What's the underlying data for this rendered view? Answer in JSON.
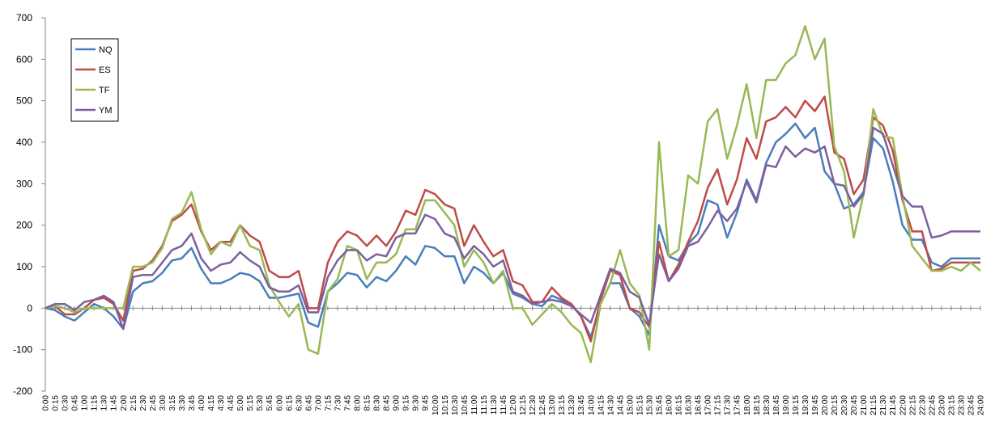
{
  "chart_data": {
    "type": "line",
    "title": "",
    "xlabel": "",
    "ylabel": "",
    "ylim": [
      -200,
      700
    ],
    "yticks": [
      "700",
      "600",
      "500",
      "400",
      "300",
      "200",
      "100",
      "0",
      "-100",
      "-200"
    ],
    "grid": false,
    "legend": "top-left",
    "x": [
      "0:00",
      "0:15",
      "0:30",
      "0:45",
      "1:00",
      "1:15",
      "1:30",
      "1:45",
      "2:00",
      "2:15",
      "2:30",
      "2:45",
      "3:00",
      "3:15",
      "3:30",
      "3:45",
      "4:00",
      "4:15",
      "4:30",
      "4:45",
      "5:00",
      "5:15",
      "5:30",
      "5:45",
      "6:00",
      "6:15",
      "6:30",
      "6:45",
      "7:00",
      "7:15",
      "7:30",
      "7:45",
      "8:00",
      "8:15",
      "8:30",
      "8:45",
      "9:00",
      "9:15",
      "9:30",
      "9:45",
      "10:00",
      "10:15",
      "10:30",
      "10:45",
      "11:00",
      "11:15",
      "11:30",
      "11:45",
      "12:00",
      "12:15",
      "12:30",
      "12:45",
      "13:00",
      "13:15",
      "13:30",
      "13:45",
      "14:00",
      "14:15",
      "14:30",
      "14:45",
      "15:00",
      "15:15",
      "15:30",
      "15:45",
      "16:00",
      "16:15",
      "16:30",
      "16:45",
      "17:00",
      "17:15",
      "17:30",
      "17:45",
      "18:00",
      "18:15",
      "18:30",
      "18:45",
      "19:00",
      "19:15",
      "19:30",
      "19:45",
      "20:00",
      "20:15",
      "20:30",
      "20:45",
      "21:00",
      "21:15",
      "21:30",
      "21:45",
      "22:00",
      "22:15",
      "22:30",
      "22:45",
      "23:00",
      "23:15",
      "23:30",
      "23:45",
      "24:00"
    ],
    "series": [
      {
        "name": "NQ",
        "color": "#4a7ebb",
        "values": [
          0,
          -5,
          -20,
          -30,
          -10,
          10,
          0,
          -20,
          -50,
          40,
          60,
          65,
          85,
          115,
          120,
          145,
          95,
          60,
          60,
          70,
          85,
          80,
          65,
          25,
          25,
          30,
          35,
          -35,
          -45,
          40,
          60,
          85,
          80,
          50,
          75,
          65,
          90,
          125,
          105,
          150,
          145,
          125,
          125,
          60,
          100,
          85,
          60,
          85,
          35,
          25,
          10,
          5,
          30,
          20,
          10,
          -20,
          -70,
          10,
          60,
          60,
          0,
          -20,
          -65,
          200,
          125,
          115,
          155,
          180,
          260,
          250,
          170,
          230,
          310,
          260,
          350,
          400,
          420,
          445,
          410,
          435,
          330,
          300,
          240,
          250,
          280,
          410,
          385,
          305,
          200,
          165,
          165,
          110,
          100,
          120,
          120,
          120,
          120
        ]
      },
      {
        "name": "ES",
        "color": "#be4b48",
        "values": [
          0,
          5,
          -15,
          -15,
          0,
          20,
          25,
          10,
          -30,
          90,
          95,
          115,
          150,
          210,
          225,
          250,
          185,
          140,
          160,
          160,
          200,
          175,
          160,
          90,
          75,
          75,
          90,
          0,
          0,
          110,
          160,
          185,
          175,
          150,
          175,
          150,
          185,
          235,
          225,
          285,
          275,
          250,
          240,
          150,
          200,
          160,
          125,
          140,
          65,
          55,
          15,
          15,
          50,
          25,
          10,
          -20,
          -80,
          20,
          90,
          80,
          0,
          -10,
          -45,
          160,
          65,
          105,
          160,
          210,
          290,
          335,
          250,
          310,
          410,
          360,
          450,
          460,
          485,
          460,
          500,
          475,
          510,
          375,
          360,
          275,
          310,
          460,
          440,
          380,
          260,
          185,
          185,
          90,
          95,
          110,
          110,
          110,
          110
        ]
      },
      {
        "name": "TF",
        "color": "#98b954",
        "values": [
          0,
          5,
          0,
          -10,
          0,
          0,
          0,
          0,
          0,
          100,
          100,
          110,
          145,
          215,
          230,
          280,
          190,
          130,
          160,
          150,
          200,
          150,
          140,
          55,
          15,
          -20,
          10,
          -100,
          -110,
          40,
          70,
          150,
          140,
          70,
          110,
          110,
          130,
          190,
          190,
          260,
          260,
          230,
          200,
          100,
          140,
          110,
          60,
          90,
          0,
          0,
          -40,
          -15,
          10,
          -10,
          -40,
          -60,
          -130,
          10,
          60,
          140,
          60,
          30,
          -100,
          400,
          125,
          140,
          320,
          300,
          450,
          480,
          360,
          440,
          540,
          410,
          550,
          550,
          590,
          610,
          680,
          600,
          650,
          390,
          330,
          170,
          275,
          480,
          415,
          410,
          270,
          150,
          120,
          90,
          90,
          100,
          90,
          110,
          90
        ]
      },
      {
        "name": "YM",
        "color": "#7d5fa0",
        "values": [
          0,
          10,
          10,
          -5,
          15,
          20,
          30,
          15,
          -50,
          75,
          80,
          80,
          110,
          140,
          150,
          180,
          120,
          90,
          105,
          110,
          135,
          115,
          100,
          50,
          40,
          40,
          55,
          -10,
          -10,
          75,
          115,
          140,
          140,
          115,
          130,
          125,
          170,
          180,
          180,
          225,
          215,
          180,
          170,
          120,
          150,
          130,
          100,
          115,
          40,
          30,
          10,
          15,
          20,
          15,
          5,
          -15,
          -35,
          30,
          95,
          85,
          40,
          25,
          -40,
          130,
          65,
          95,
          150,
          160,
          195,
          235,
          210,
          240,
          305,
          255,
          345,
          340,
          390,
          365,
          385,
          375,
          390,
          300,
          295,
          245,
          275,
          435,
          420,
          345,
          270,
          245,
          245,
          170,
          175,
          185,
          185,
          185,
          185
        ]
      }
    ]
  }
}
